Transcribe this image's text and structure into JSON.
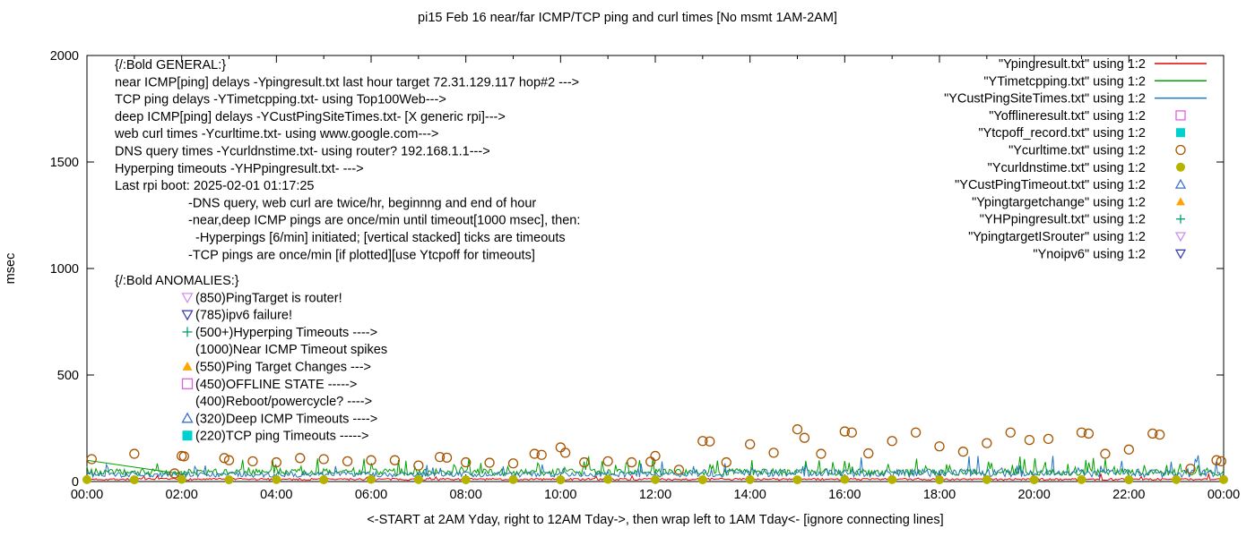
{
  "colors": {
    "near_ping": "#dd0000",
    "tcp_ping": "#00a000",
    "deep_ping": "#2277bb",
    "offline": "#e060e0",
    "tcpoff": "#00d0d0",
    "curl": "#a65400",
    "dns": "#b4b400",
    "deep_timeout": "#3a6fd8",
    "target_change": "#ffa500",
    "hyperping": "#009e73",
    "isrouter": "#cf8fef",
    "noipv6": "#4040b0"
  },
  "annotations": {
    "general": {
      "heading": "{/:Bold GENERAL:}",
      "lines": [
        {
          "indent": 0,
          "text": "near ICMP[ping] delays -Ypingresult.txt last hour target 72.31.129.117 hop#2 --->"
        },
        {
          "indent": 0,
          "text": "TCP ping delays -YTimetcpping.txt- using Top100Web--->"
        },
        {
          "indent": 0,
          "text": "deep ICMP[ping] delays -YCustPingSiteTimes.txt- [X generic rpi]--->"
        },
        {
          "indent": 0,
          "text": "web curl times -Ycurltime.txt- using www.google.com--->"
        },
        {
          "indent": 0,
          "text": "DNS query times -Ycurldnstime.txt- using router? 192.168.1.1--->"
        },
        {
          "indent": 0,
          "text": "Hyperping timeouts -YHPpingresult.txt- --->"
        },
        {
          "indent": 0,
          "text": "Last rpi boot: 2025-02-01 01:17:25"
        },
        {
          "indent": 1,
          "text": "-DNS query, web curl are twice/hr, beginnng and end of hour"
        },
        {
          "indent": 1,
          "text": "-near,deep ICMP pings are once/min until timeout[1000 msec], then:"
        },
        {
          "indent": 2,
          "text": "-Hyperpings [6/min] initiated; [vertical stacked] ticks are timeouts"
        },
        {
          "indent": 1,
          "text": "-TCP pings are once/min [if plotted][use Ytcpoff for timeouts]"
        }
      ]
    },
    "anomalies": {
      "heading": "{/:Bold ANOMALIES:}",
      "items": [
        {
          "marker": "triangle-down-open",
          "color_key": "isrouter",
          "text": "(850)PingTarget is router!"
        },
        {
          "marker": "triangle-down-open",
          "color_key": "noipv6",
          "text": "(785)ipv6 failure!"
        },
        {
          "marker": "plus",
          "color_key": "hyperping",
          "text": "(500+)Hyperping Timeouts ---->"
        },
        {
          "marker": null,
          "color_key": null,
          "text": "(1000)Near ICMP Timeout spikes"
        },
        {
          "marker": "triangle-up-filled",
          "color_key": "target_change",
          "text": "(550)Ping Target Changes --->"
        },
        {
          "marker": "square-open",
          "color_key": "offline",
          "text": "(450)OFFLINE STATE ----->"
        },
        {
          "marker": null,
          "color_key": null,
          "text": "(400)Reboot/powercycle? ---->"
        },
        {
          "marker": "triangle-up-open",
          "color_key": "deep_timeout",
          "text": "(320)Deep ICMP Timeouts ---->"
        },
        {
          "marker": "square-filled",
          "color_key": "tcpoff",
          "text": "(220)TCP ping Timeouts ----->"
        }
      ]
    }
  },
  "chart_data": {
    "type": "line",
    "title": "pi15 Feb 16  near/far ICMP/TCP ping and curl times [No msmt 1AM-2AM]",
    "xlabel": "<-START at 2AM Yday, right to 12AM Tday->, then wrap left to 1AM Tday<- [ignore connecting lines]",
    "ylabel": "msec",
    "xlim": [
      0,
      24
    ],
    "ylim": [
      0,
      2000
    ],
    "x_ticks": [
      "00:00",
      "02:00",
      "04:00",
      "06:00",
      "08:00",
      "10:00",
      "12:00",
      "14:00",
      "16:00",
      "18:00",
      "20:00",
      "22:00",
      "00:00"
    ],
    "y_ticks": [
      0,
      500,
      1000,
      1500,
      2000
    ],
    "grid": false,
    "legend_position": "top-right-inside",
    "series": [
      {
        "name": "\"Ypingresult.txt\" using 1:2",
        "style": "line",
        "color_key": "near_ping",
        "gen": {
          "seed": 7,
          "points": 760,
          "base": 6,
          "jitter": 9,
          "spike_prob": 0.02,
          "spike_amp": 25
        }
      },
      {
        "name": "\"YTimetcpping.txt\" using 1:2",
        "style": "line",
        "color_key": "tcp_ping",
        "gen": {
          "seed": 23,
          "points": 760,
          "base": 28,
          "jitter": 32,
          "spike_prob": 0.08,
          "spike_amp": 65
        },
        "connector": [
          [
            0,
            100
          ],
          [
            2.1,
            32
          ]
        ]
      },
      {
        "name": "\"YCustPingSiteTimes.txt\" using 1:2",
        "style": "line",
        "color_key": "deep_ping",
        "gen": {
          "seed": 41,
          "points": 760,
          "base": 20,
          "jitter": 26,
          "spike_prob": 0.06,
          "spike_amp": 60,
          "late_from": 13,
          "late_mult": 1.5
        }
      },
      {
        "name": "\"Yofflineresult.txt\" using 1:2",
        "style": "square-open",
        "color_key": "offline",
        "points": []
      },
      {
        "name": "\"Ytcpoff_record.txt\" using 1:2",
        "style": "square-filled",
        "color_key": "tcpoff",
        "points": []
      },
      {
        "name": "\"Ycurltime.txt\" using 1:2",
        "style": "circle-open",
        "color_key": "curl",
        "points": [
          [
            0.1,
            105
          ],
          [
            1.0,
            130
          ],
          [
            1.85,
            38
          ],
          [
            2.0,
            120
          ],
          [
            2.05,
            118
          ],
          [
            2.9,
            110
          ],
          [
            3.0,
            100
          ],
          [
            3.5,
            95
          ],
          [
            4.0,
            90
          ],
          [
            4.5,
            110
          ],
          [
            5.0,
            105
          ],
          [
            5.5,
            95
          ],
          [
            6.0,
            100
          ],
          [
            6.5,
            100
          ],
          [
            7.0,
            75
          ],
          [
            7.45,
            115
          ],
          [
            7.6,
            112
          ],
          [
            8.0,
            90
          ],
          [
            8.5,
            88
          ],
          [
            9.0,
            85
          ],
          [
            9.45,
            130
          ],
          [
            9.6,
            125
          ],
          [
            10.0,
            160
          ],
          [
            10.1,
            135
          ],
          [
            10.5,
            90
          ],
          [
            11.0,
            95
          ],
          [
            11.5,
            90
          ],
          [
            11.9,
            93
          ],
          [
            12.0,
            120
          ],
          [
            12.5,
            55
          ],
          [
            13.0,
            190
          ],
          [
            13.15,
            188
          ],
          [
            13.5,
            90
          ],
          [
            14.0,
            175
          ],
          [
            14.5,
            135
          ],
          [
            15.0,
            245
          ],
          [
            15.15,
            205
          ],
          [
            15.5,
            130
          ],
          [
            16.0,
            235
          ],
          [
            16.15,
            230
          ],
          [
            16.5,
            132
          ],
          [
            17.0,
            190
          ],
          [
            17.5,
            230
          ],
          [
            18.0,
            165
          ],
          [
            18.5,
            140
          ],
          [
            19.0,
            180
          ],
          [
            19.5,
            230
          ],
          [
            19.9,
            195
          ],
          [
            20.3,
            200
          ],
          [
            21.0,
            230
          ],
          [
            21.15,
            225
          ],
          [
            21.5,
            130
          ],
          [
            22.0,
            150
          ],
          [
            22.5,
            225
          ],
          [
            22.65,
            220
          ],
          [
            23.3,
            60
          ],
          [
            23.85,
            100
          ],
          [
            23.95,
            95
          ]
        ]
      },
      {
        "name": "\"Ycurldnstime.txt\" using 1:2",
        "style": "circle-filled",
        "color_key": "dns",
        "points": [
          [
            0,
            9
          ],
          [
            1,
            8
          ],
          [
            2,
            10
          ],
          [
            3,
            8
          ],
          [
            4,
            9
          ],
          [
            5,
            8
          ],
          [
            6,
            10
          ],
          [
            7,
            9
          ],
          [
            8,
            8
          ],
          [
            9,
            9
          ],
          [
            10,
            8
          ],
          [
            11,
            10
          ],
          [
            12,
            9
          ],
          [
            13,
            8
          ],
          [
            14,
            9
          ],
          [
            15,
            8
          ],
          [
            16,
            10
          ],
          [
            17,
            9
          ],
          [
            18,
            8
          ],
          [
            19,
            9
          ],
          [
            20,
            8
          ],
          [
            21,
            9
          ],
          [
            22,
            8
          ],
          [
            23,
            9
          ],
          [
            24,
            9
          ]
        ]
      },
      {
        "name": "\"YCustPingTimeout.txt\" using 1:2",
        "style": "triangle-up-open",
        "color_key": "deep_timeout",
        "points": []
      },
      {
        "name": "\"Ypingtargetchange\" using 1:2",
        "style": "triangle-up-filled",
        "color_key": "target_change",
        "points": []
      },
      {
        "name": "\"YHPpingresult.txt\" using 1:2",
        "style": "plus",
        "color_key": "hyperping",
        "points": []
      },
      {
        "name": "\"YpingtargetISrouter\" using 1:2",
        "style": "triangle-down-open",
        "color_key": "isrouter",
        "points": []
      },
      {
        "name": "\"Ynoipv6\" using 1:2",
        "style": "triangle-down-open",
        "color_key": "noipv6",
        "points": []
      }
    ]
  }
}
